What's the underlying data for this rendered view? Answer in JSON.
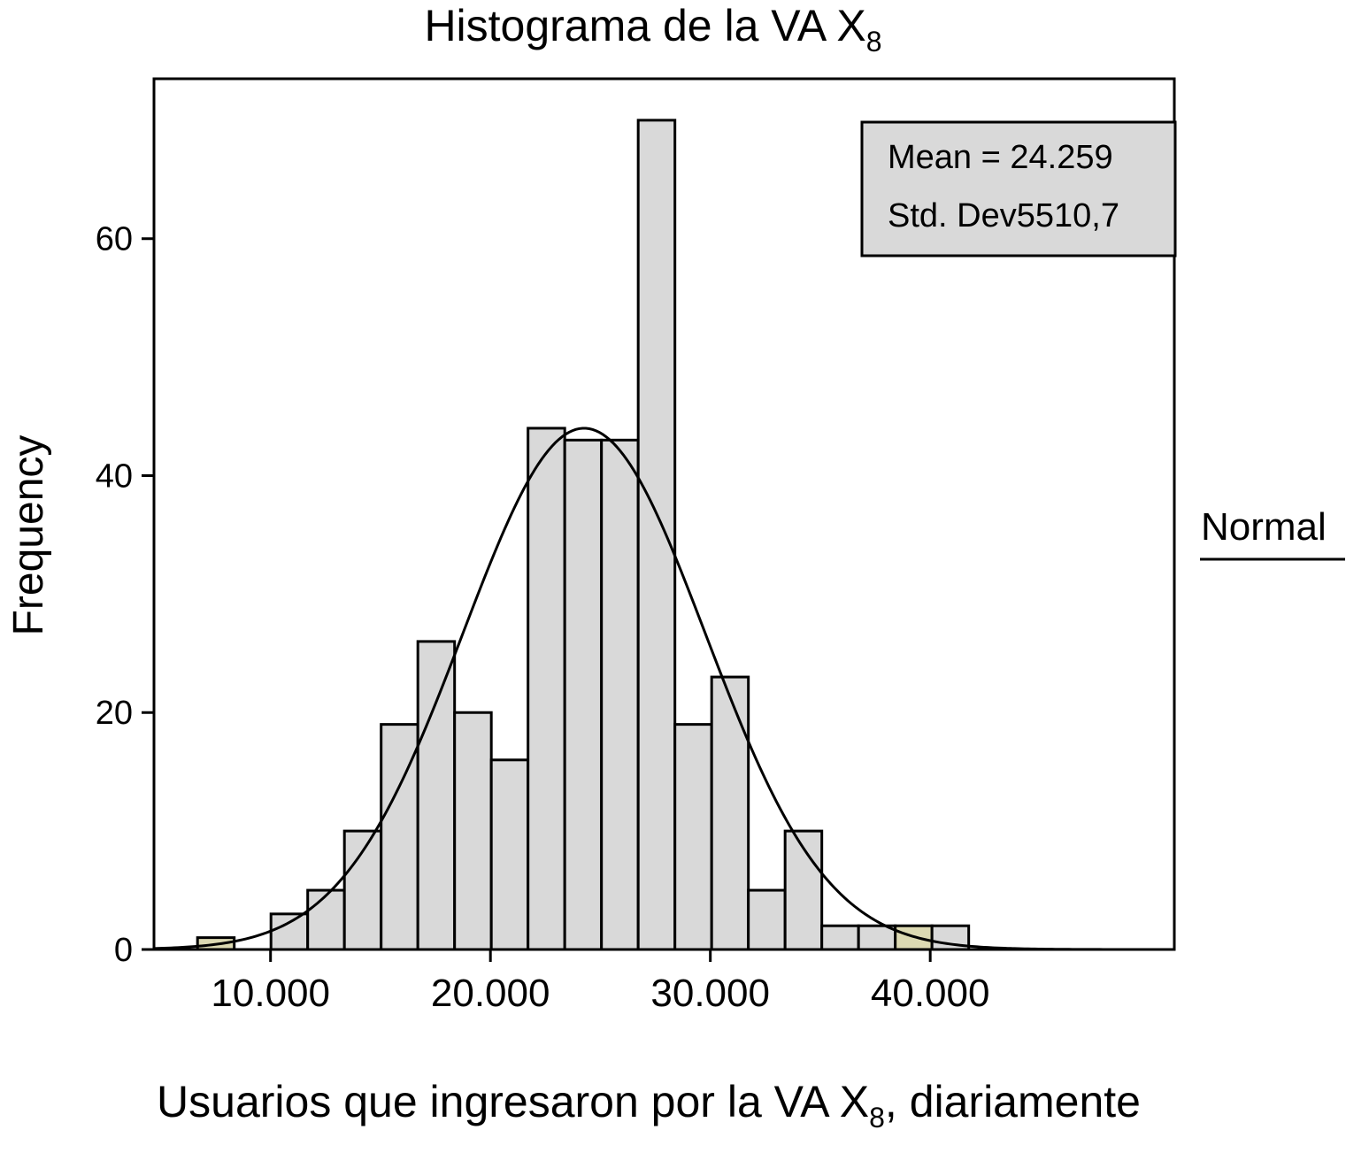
{
  "chart_data": {
    "type": "bar",
    "title": "Histograma de la VA X",
    "title_subscript": "8",
    "xlabel_prefix": "Usuarios que ingresaron por la VA X",
    "xlabel_subscript": "8",
    "xlabel_suffix": ", diariamente",
    "ylabel": "Frequency",
    "xlim": [
      4700,
      51100
    ],
    "ylim": [
      0,
      73.5
    ],
    "x_ticks": [
      10000,
      20000,
      30000,
      40000
    ],
    "x_tick_labels": [
      "10.000",
      "20.000",
      "30.000",
      "40.000"
    ],
    "y_ticks": [
      0,
      20,
      40,
      60
    ],
    "y_tick_labels": [
      "0",
      "20",
      "40",
      "60"
    ],
    "bin_width": 1670,
    "bins": [
      {
        "start": 6680,
        "value": 1,
        "highlight": true
      },
      {
        "start": 8350,
        "value": 0
      },
      {
        "start": 10020,
        "value": 3
      },
      {
        "start": 11690,
        "value": 5
      },
      {
        "start": 13360,
        "value": 10
      },
      {
        "start": 15030,
        "value": 19
      },
      {
        "start": 16700,
        "value": 26
      },
      {
        "start": 18370,
        "value": 20
      },
      {
        "start": 20040,
        "value": 16
      },
      {
        "start": 21710,
        "value": 44
      },
      {
        "start": 23380,
        "value": 43
      },
      {
        "start": 25050,
        "value": 43
      },
      {
        "start": 26720,
        "value": 70
      },
      {
        "start": 28390,
        "value": 19
      },
      {
        "start": 30060,
        "value": 23
      },
      {
        "start": 31730,
        "value": 5
      },
      {
        "start": 33400,
        "value": 10
      },
      {
        "start": 35070,
        "value": 2
      },
      {
        "start": 36740,
        "value": 2
      },
      {
        "start": 38410,
        "value": 2,
        "highlight": true
      },
      {
        "start": 40080,
        "value": 2
      }
    ],
    "normal_curve": {
      "mean": 24259,
      "std": 5510.7,
      "peak": 44
    },
    "stats": [
      "Mean = 24.259",
      "Std. Dev5510,7"
    ],
    "legend_label": "Normal",
    "legend_position": "right",
    "grid": false,
    "colors": {
      "bar_fill": "#d9d9d9",
      "bar_highlight": "#dcd9b2",
      "stroke": "#000000",
      "stats_box": "#d9d9d9"
    }
  }
}
